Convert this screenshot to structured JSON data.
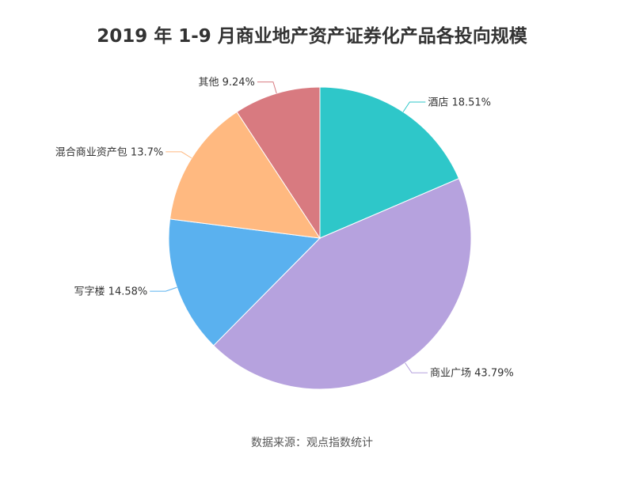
{
  "chart_data": {
    "type": "pie",
    "title": "2019 年 1-9 月商业地产资产证券化产品各投向规模",
    "categories": [
      "酒店",
      "商业广场",
      "写字楼",
      "混合商业资产包",
      "其他"
    ],
    "values": [
      18.51,
      43.79,
      14.58,
      13.7,
      9.24
    ],
    "labels": [
      "酒店 18.51%",
      "商业广场 43.79%",
      "写字楼 14.58%",
      "混合商业资产包 13.7%",
      "其他 9.24%"
    ],
    "colors": [
      "#2EC7C9",
      "#B6A2DE",
      "#5AB1EF",
      "#FFB980",
      "#D87A80"
    ],
    "unit": "%",
    "legend": "none"
  },
  "source": "数据来源：观点指数统计"
}
